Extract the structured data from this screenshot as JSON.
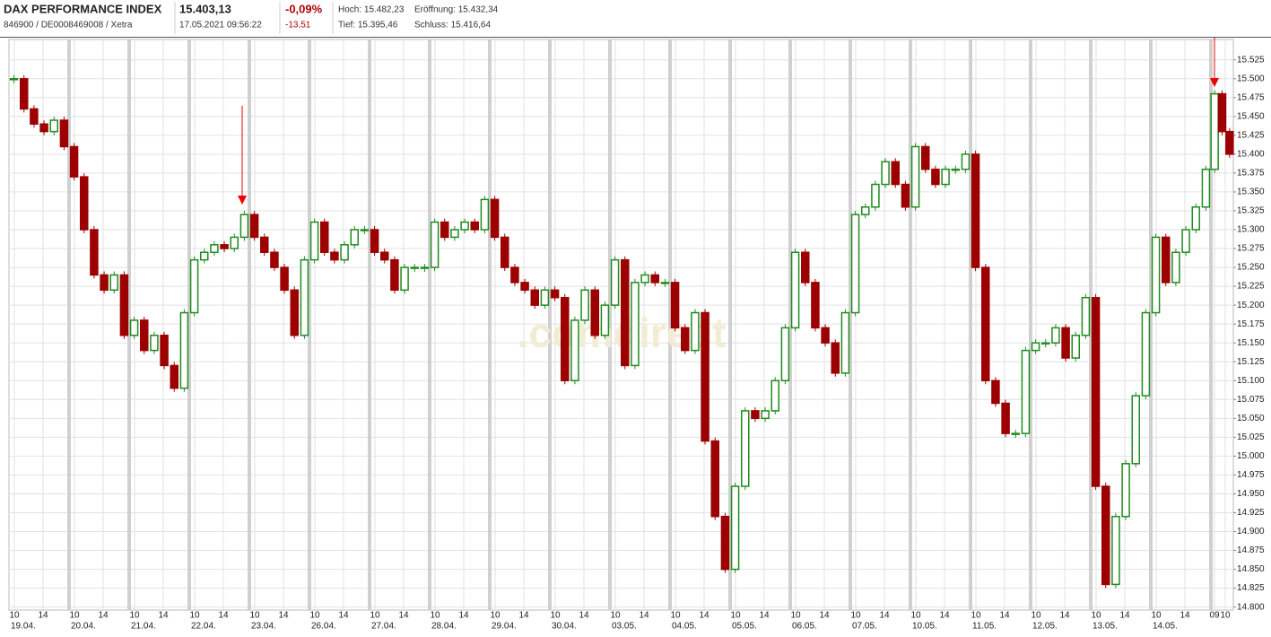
{
  "header": {
    "title": "DAX PERFORMANCE INDEX",
    "subtitle": "846900 / DE0008469008 / Xetra",
    "price": "15.403,13",
    "timestamp": "17.05.2021 09:56:22",
    "change_pct": "-0,09%",
    "change_abs": "-13,51",
    "high": "Hoch: 15.482,23",
    "open": "Eröffnung: 15.432,34",
    "low": "Tief: 15.395,46",
    "close": "Schluss: 15.416,64"
  },
  "chart_data": {
    "type": "candlestick",
    "watermark": ".comdirect",
    "up_color": "#1e8c1e",
    "down_color": "#9c0000",
    "grid": true,
    "ylim": [
      14796,
      15552
    ],
    "yticks": [
      {
        "value": 14800,
        "label": "14.800"
      },
      {
        "value": 14825,
        "label": "14.825"
      },
      {
        "value": 14850,
        "label": "14.850"
      },
      {
        "value": 14875,
        "label": "14.875"
      },
      {
        "value": 14900,
        "label": "14.900"
      },
      {
        "value": 14925,
        "label": "14.925"
      },
      {
        "value": 14950,
        "label": "14.950"
      },
      {
        "value": 14975,
        "label": "14.975"
      },
      {
        "value": 15000,
        "label": "15.000"
      },
      {
        "value": 15025,
        "label": "15.025"
      },
      {
        "value": 15050,
        "label": "15.050"
      },
      {
        "value": 15075,
        "label": "15.075"
      },
      {
        "value": 15100,
        "label": "15.100"
      },
      {
        "value": 15125,
        "label": "15.125"
      },
      {
        "value": 15150,
        "label": "15.150"
      },
      {
        "value": 15175,
        "label": "15.175"
      },
      {
        "value": 15200,
        "label": "15.200"
      },
      {
        "value": 15225,
        "label": "15.225"
      },
      {
        "value": 15250,
        "label": "15.250"
      },
      {
        "value": 15275,
        "label": "15.275"
      },
      {
        "value": 15300,
        "label": "15.300"
      },
      {
        "value": 15325,
        "label": "15.325"
      },
      {
        "value": 15350,
        "label": "15.350"
      },
      {
        "value": 15375,
        "label": "15.375"
      },
      {
        "value": 15400,
        "label": "15.400"
      },
      {
        "value": 15425,
        "label": "15.425"
      },
      {
        "value": 15450,
        "label": "15.450"
      },
      {
        "value": 15475,
        "label": "15.475"
      },
      {
        "value": 15500,
        "label": "15.500"
      },
      {
        "value": 15525,
        "label": "15.525"
      }
    ],
    "hour_labels": [
      "10",
      "14"
    ],
    "last_hour_labels": [
      "09",
      "10"
    ],
    "days": [
      {
        "date": "19.04.",
        "values": [
          15500,
          15460,
          15440,
          15430,
          15445,
          15410
        ]
      },
      {
        "date": "20.04.",
        "values": [
          15370,
          15300,
          15240,
          15220,
          15240,
          15160
        ]
      },
      {
        "date": "21.04.",
        "values": [
          15180,
          15140,
          15160,
          15120,
          15090,
          15190
        ]
      },
      {
        "date": "22.04.",
        "values": [
          15260,
          15270,
          15280,
          15275,
          15290,
          15320
        ]
      },
      {
        "date": "23.04.",
        "values": [
          15290,
          15270,
          15250,
          15220,
          15160,
          15260
        ]
      },
      {
        "date": "26.04.",
        "values": [
          15310,
          15270,
          15260,
          15280,
          15300,
          15300
        ]
      },
      {
        "date": "27.04.",
        "values": [
          15270,
          15260,
          15220,
          15250,
          15250,
          15250
        ]
      },
      {
        "date": "28.04.",
        "values": [
          15310,
          15290,
          15300,
          15310,
          15300,
          15340
        ]
      },
      {
        "date": "29.04.",
        "values": [
          15290,
          15250,
          15230,
          15220,
          15200,
          15220
        ]
      },
      {
        "date": "30.04.",
        "values": [
          15210,
          15100,
          15180,
          15220,
          15160,
          15200
        ]
      },
      {
        "date": "03.05.",
        "values": [
          15260,
          15120,
          15230,
          15240,
          15230,
          15230
        ]
      },
      {
        "date": "04.05.",
        "values": [
          15170,
          15140,
          15190,
          15020,
          14920,
          14850
        ]
      },
      {
        "date": "05.05.",
        "values": [
          14960,
          15060,
          15050,
          15060,
          15100,
          15170
        ]
      },
      {
        "date": "06.05.",
        "values": [
          15270,
          15230,
          15170,
          15150,
          15110,
          15190
        ]
      },
      {
        "date": "07.05.",
        "values": [
          15320,
          15330,
          15360,
          15390,
          15360,
          15330
        ]
      },
      {
        "date": "10.05.",
        "values": [
          15410,
          15380,
          15360,
          15380,
          15380,
          15400
        ]
      },
      {
        "date": "11.05.",
        "values": [
          15250,
          15100,
          15070,
          15030,
          15030,
          15140
        ]
      },
      {
        "date": "12.05.",
        "values": [
          15150,
          15150,
          15170,
          15130,
          15160,
          15210
        ]
      },
      {
        "date": "13.05.",
        "values": [
          14960,
          14830,
          14920,
          14990,
          15080,
          15190
        ]
      },
      {
        "date": "14.05.",
        "values": [
          15290,
          15230,
          15270,
          15300,
          15330,
          15380
        ]
      },
      {
        "date": null,
        "values": [
          15480,
          15430,
          15400
        ]
      }
    ]
  }
}
